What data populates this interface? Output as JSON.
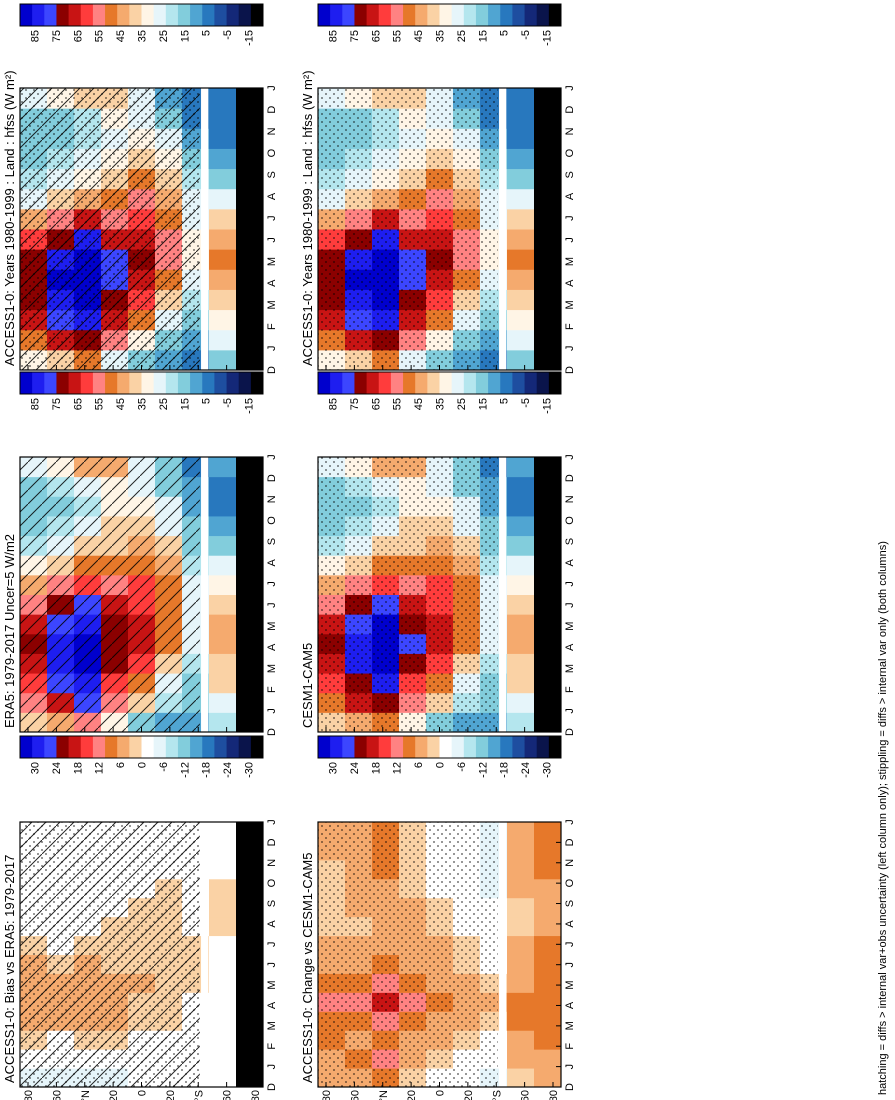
{
  "figure": {
    "footer_note": "hatching = diffs > internal var+obs uncertainty (left column only); stippling = diffs > internal var only (both columns)"
  },
  "chart_data": [
    {
      "id": "p_left_top",
      "type": "heatmap",
      "title": "ACCESS1-0: Years 1980-1999 : Land : hfss (W m²)",
      "x_ticks": [
        "D",
        "J",
        "F",
        "M",
        "A",
        "M",
        "J",
        "J",
        "A",
        "S",
        "O",
        "N",
        "D",
        "J"
      ],
      "y_ticks": [
        "80",
        "60",
        "°N",
        "20",
        "0",
        "20",
        "°S",
        "60",
        "80"
      ],
      "colorbar_labels": [
        "85",
        "75",
        "65",
        "55",
        "45",
        "35",
        "25",
        "15",
        "5",
        "-5",
        "-15"
      ],
      "value_range": [
        -15,
        85
      ],
      "colormap": "full",
      "overlay": "hatch+stipple",
      "field": [
        [
          35,
          50,
          62,
          68,
          70,
          66,
          58,
          45,
          30,
          22,
          18,
          16,
          18,
          28
        ],
        [
          40,
          62,
          72,
          80,
          82,
          78,
          68,
          52,
          36,
          28,
          22,
          18,
          20,
          32
        ],
        [
          48,
          70,
          80,
          86,
          88,
          84,
          76,
          62,
          45,
          34,
          26,
          22,
          24,
          40
        ],
        [
          30,
          52,
          62,
          70,
          74,
          72,
          64,
          55,
          48,
          40,
          35,
          30,
          32,
          40
        ],
        [
          18,
          34,
          46,
          58,
          64,
          66,
          62,
          58,
          52,
          46,
          40,
          34,
          30,
          28
        ],
        [
          12,
          20,
          30,
          40,
          48,
          52,
          52,
          48,
          44,
          38,
          32,
          26,
          20,
          15
        ],
        [
          10,
          14,
          18,
          24,
          28,
          32,
          32,
          30,
          26,
          22,
          18,
          14,
          10,
          8
        ],
        [
          20,
          28,
          34,
          40,
          44,
          46,
          42,
          36,
          28,
          20,
          14,
          10,
          8,
          10
        ],
        [
          -15,
          -15,
          -15,
          -15,
          -15,
          -15,
          -15,
          -15,
          -15,
          -15,
          -15,
          -15,
          -15,
          -15
        ]
      ]
    },
    {
      "id": "p_left_mid",
      "type": "heatmap",
      "title": "ERA5: 1979-2017 Uncer=5 W/m2",
      "x_ticks": [
        "D",
        "J",
        "F",
        "M",
        "A",
        "M",
        "J",
        "J",
        "A",
        "S",
        "O",
        "N",
        "D",
        "J"
      ],
      "y_ticks": [
        "80",
        "60",
        "°N",
        "20",
        "0",
        "20",
        "°S",
        "60",
        "80"
      ],
      "colorbar_labels": [
        "85",
        "75",
        "65",
        "55",
        "45",
        "35",
        "25",
        "15",
        "5",
        "-5",
        "-15"
      ],
      "value_range": [
        -15,
        85
      ],
      "colormap": "full",
      "overlay": "hatch",
      "field": [
        [
          38,
          52,
          60,
          64,
          66,
          62,
          54,
          44,
          32,
          24,
          20,
          18,
          20,
          30
        ],
        [
          44,
          64,
          72,
          76,
          78,
          74,
          66,
          52,
          38,
          30,
          24,
          20,
          22,
          34
        ],
        [
          52,
          72,
          78,
          82,
          84,
          80,
          72,
          60,
          46,
          36,
          28,
          24,
          26,
          42
        ],
        [
          34,
          54,
          60,
          66,
          70,
          68,
          62,
          54,
          46,
          40,
          36,
          32,
          34,
          42
        ],
        [
          20,
          36,
          46,
          56,
          62,
          62,
          60,
          56,
          50,
          44,
          40,
          34,
          30,
          30
        ],
        [
          14,
          22,
          30,
          38,
          46,
          50,
          50,
          46,
          42,
          36,
          30,
          26,
          20,
          16
        ],
        [
          12,
          16,
          20,
          24,
          28,
          30,
          30,
          28,
          24,
          20,
          16,
          14,
          12,
          10
        ],
        [
          22,
          30,
          36,
          40,
          44,
          44,
          40,
          34,
          26,
          20,
          14,
          10,
          10,
          12
        ],
        [
          -15,
          -15,
          -15,
          -15,
          -15,
          -15,
          -15,
          -15,
          -15,
          -15,
          -15,
          -15,
          -15,
          -15
        ]
      ]
    },
    {
      "id": "p_left_bot",
      "type": "heatmap",
      "title": "ACCESS1-0: Bias vs ERA5: 1979-2017",
      "x_ticks": [
        "D",
        "J",
        "F",
        "M",
        "A",
        "M",
        "J",
        "J",
        "A",
        "S",
        "O",
        "N",
        "D",
        "J"
      ],
      "y_ticks": [
        "80",
        "60",
        "°N",
        "20",
        "0",
        "20",
        "°S",
        "60",
        "80"
      ],
      "colorbar_labels": [
        "30",
        "24",
        "18",
        "12",
        "6",
        "0",
        "-6",
        "-12",
        "-18",
        "-24",
        "-30"
      ],
      "value_range": [
        -30,
        30
      ],
      "colormap": "diverging",
      "overlay": "hatch+stipple",
      "field": [
        [
          -3,
          -2,
          2,
          4,
          4,
          4,
          4,
          1,
          -2,
          -2,
          -2,
          -2,
          -2,
          -2
        ],
        [
          -4,
          -2,
          0,
          4,
          4,
          4,
          2,
          0,
          -2,
          -2,
          -2,
          -2,
          -2,
          -2
        ],
        [
          -4,
          -2,
          2,
          4,
          4,
          4,
          4,
          2,
          -1,
          -2,
          -2,
          -2,
          -2,
          -2
        ],
        [
          -4,
          -2,
          2,
          4,
          4,
          4,
          2,
          1,
          2,
          0,
          -1,
          -2,
          -2,
          -2
        ],
        [
          -2,
          -2,
          0,
          2,
          2,
          4,
          2,
          2,
          2,
          2,
          0,
          0,
          0,
          -2
        ],
        [
          -2,
          -2,
          0,
          2,
          2,
          2,
          2,
          2,
          2,
          2,
          2,
          0,
          0,
          -2
        ],
        [
          -2,
          -2,
          -2,
          0,
          0,
          2,
          2,
          2,
          0,
          0,
          -2,
          -2,
          -2,
          -2
        ],
        [
          -2,
          -2,
          -2,
          0,
          0,
          0,
          0,
          0,
          2,
          2,
          2,
          0,
          -2,
          -2
        ],
        [
          -30,
          -30,
          -30,
          -30,
          -30,
          -30,
          -30,
          -30,
          -30,
          -30,
          -30,
          -30,
          -30,
          -30
        ]
      ]
    },
    {
      "id": "p_right_top",
      "type": "heatmap",
      "title": "ACCESS1-0: Years 1980-1999 : Land : hfss (W m²)",
      "x_ticks": [
        "D",
        "J",
        "F",
        "M",
        "A",
        "M",
        "J",
        "J",
        "A",
        "S",
        "O",
        "N",
        "D",
        "J"
      ],
      "y_ticks": [
        "80",
        "60",
        "°N",
        "20",
        "0",
        "20",
        "°S",
        "60",
        "80"
      ],
      "colorbar_labels": [
        "85",
        "75",
        "65",
        "55",
        "45",
        "35",
        "25",
        "15",
        "5",
        "-5",
        "-15"
      ],
      "value_range": [
        -15,
        85
      ],
      "colormap": "full",
      "overlay": "stipple",
      "field": [
        [
          35,
          50,
          62,
          68,
          70,
          66,
          58,
          45,
          30,
          22,
          18,
          16,
          18,
          28
        ],
        [
          40,
          62,
          72,
          80,
          82,
          78,
          68,
          52,
          36,
          28,
          22,
          18,
          20,
          32
        ],
        [
          48,
          70,
          80,
          86,
          88,
          84,
          76,
          62,
          45,
          34,
          26,
          22,
          24,
          40
        ],
        [
          30,
          52,
          62,
          70,
          74,
          72,
          64,
          55,
          48,
          40,
          35,
          30,
          32,
          40
        ],
        [
          18,
          34,
          46,
          58,
          64,
          66,
          62,
          58,
          52,
          46,
          40,
          34,
          30,
          28
        ],
        [
          12,
          20,
          30,
          40,
          48,
          52,
          52,
          48,
          44,
          38,
          32,
          26,
          20,
          15
        ],
        [
          10,
          14,
          18,
          24,
          28,
          32,
          32,
          30,
          26,
          22,
          18,
          14,
          10,
          8
        ],
        [
          20,
          28,
          34,
          40,
          44,
          46,
          42,
          36,
          28,
          20,
          14,
          10,
          8,
          10
        ],
        [
          -15,
          -15,
          -15,
          -15,
          -15,
          -15,
          -15,
          -15,
          -15,
          -15,
          -15,
          -15,
          -15,
          -15
        ]
      ]
    },
    {
      "id": "p_right_mid",
      "type": "heatmap",
      "title": "CESM1-CAM5",
      "x_ticks": [
        "D",
        "J",
        "F",
        "M",
        "A",
        "M",
        "J",
        "J",
        "A",
        "S",
        "O",
        "N",
        "D",
        "J"
      ],
      "y_ticks": [
        "80",
        "60",
        "°N",
        "20",
        "0",
        "20",
        "°S",
        "60",
        "80"
      ],
      "colorbar_labels": [
        "85",
        "75",
        "65",
        "55",
        "45",
        "35",
        "25",
        "15",
        "5",
        "-5",
        "-15"
      ],
      "value_range": [
        -15,
        85
      ],
      "colormap": "full",
      "overlay": "stipple",
      "field": [
        [
          36,
          50,
          60,
          64,
          66,
          62,
          54,
          44,
          32,
          24,
          20,
          18,
          20,
          30
        ],
        [
          42,
          62,
          70,
          76,
          78,
          74,
          66,
          52,
          38,
          30,
          24,
          20,
          22,
          34
        ],
        [
          50,
          70,
          78,
          84,
          86,
          82,
          74,
          60,
          46,
          36,
          28,
          24,
          26,
          42
        ],
        [
          32,
          52,
          60,
          68,
          72,
          70,
          62,
          54,
          46,
          40,
          36,
          32,
          34,
          42
        ],
        [
          20,
          36,
          46,
          56,
          62,
          64,
          60,
          56,
          50,
          44,
          40,
          34,
          30,
          30
        ],
        [
          14,
          22,
          30,
          38,
          46,
          50,
          50,
          46,
          42,
          36,
          30,
          26,
          20,
          16
        ],
        [
          12,
          16,
          20,
          24,
          28,
          30,
          30,
          28,
          24,
          20,
          16,
          14,
          12,
          10
        ],
        [
          22,
          30,
          36,
          40,
          44,
          44,
          40,
          34,
          26,
          20,
          14,
          10,
          10,
          12
        ],
        [
          -15,
          -15,
          -15,
          -15,
          -15,
          -15,
          -15,
          -15,
          -15,
          -15,
          -15,
          -15,
          -15,
          -15
        ]
      ]
    },
    {
      "id": "p_right_bot",
      "type": "heatmap",
      "title": "ACCESS1-0: Change vs CESM1-CAM5",
      "x_ticks": [
        "D",
        "J",
        "F",
        "M",
        "A",
        "M",
        "J",
        "J",
        "A",
        "S",
        "O",
        "N",
        "D",
        "J"
      ],
      "y_ticks": [
        "80",
        "60",
        "°N",
        "20",
        "0",
        "20",
        "°S",
        "60",
        "80"
      ],
      "colorbar_labels": [
        "30",
        "24",
        "18",
        "12",
        "6",
        "0",
        "-6",
        "-12",
        "-18",
        "-24",
        "-30"
      ],
      "value_range": [
        -30,
        30
      ],
      "colormap": "diverging",
      "overlay": "stipple",
      "field": [
        [
          4,
          6,
          8,
          8,
          10,
          8,
          6,
          4,
          2,
          2,
          2,
          2,
          4,
          4
        ],
        [
          6,
          8,
          6,
          8,
          12,
          8,
          6,
          4,
          2,
          4,
          4,
          6,
          6,
          6
        ],
        [
          8,
          10,
          8,
          12,
          16,
          12,
          8,
          6,
          4,
          6,
          6,
          8,
          8,
          8
        ],
        [
          2,
          4,
          6,
          8,
          10,
          8,
          4,
          4,
          4,
          4,
          2,
          2,
          2,
          2
        ],
        [
          0,
          2,
          4,
          6,
          8,
          6,
          4,
          4,
          2,
          2,
          0,
          0,
          0,
          0
        ],
        [
          -2,
          0,
          2,
          4,
          6,
          4,
          2,
          2,
          0,
          0,
          -2,
          -2,
          -2,
          -2
        ],
        [
          -4,
          -2,
          0,
          2,
          4,
          2,
          0,
          0,
          -2,
          -2,
          -4,
          -4,
          -4,
          -4
        ],
        [
          2,
          4,
          6,
          8,
          8,
          6,
          4,
          4,
          2,
          2,
          4,
          4,
          4,
          4
        ],
        [
          6,
          6,
          8,
          8,
          8,
          8,
          8,
          8,
          6,
          6,
          6,
          8,
          8,
          8
        ]
      ]
    }
  ]
}
